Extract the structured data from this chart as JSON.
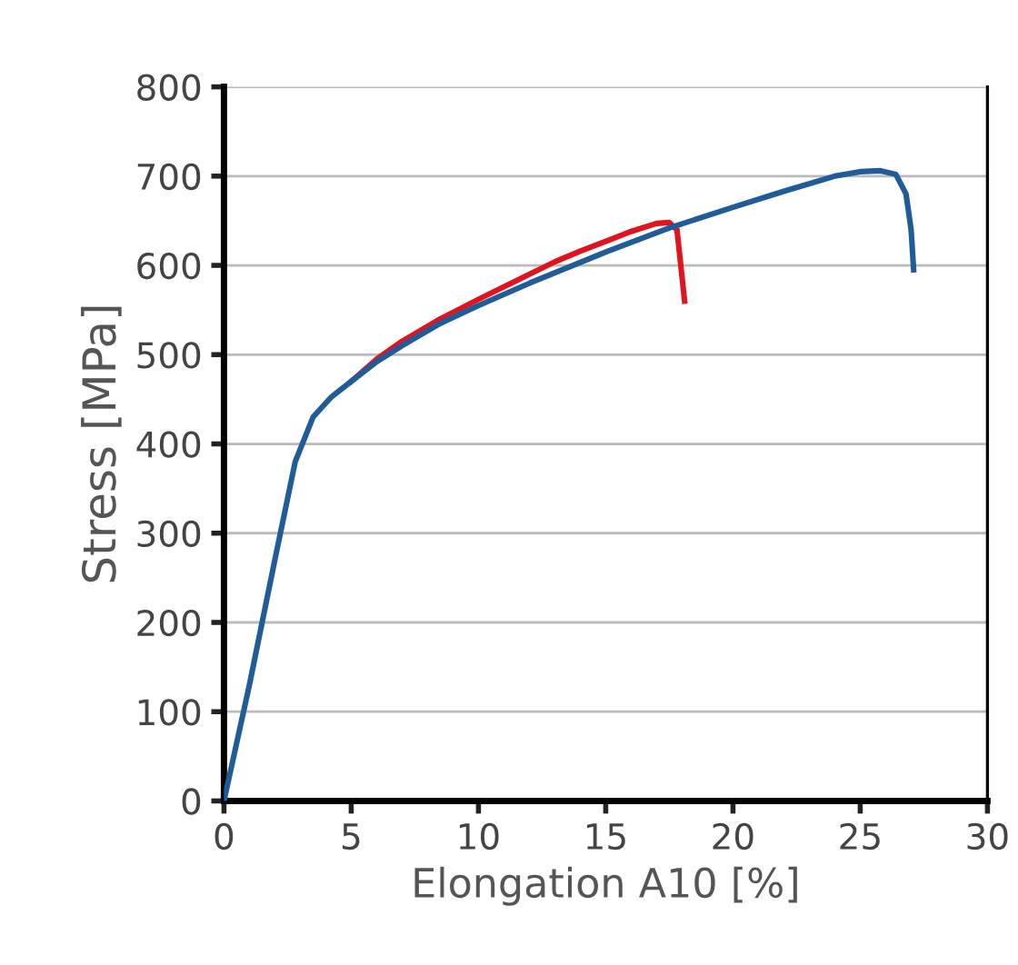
{
  "chart_data": {
    "type": "line",
    "xlabel": "Elongation A10 [%]",
    "ylabel": "Stress [MPa]",
    "xlim": [
      0,
      30
    ],
    "ylim": [
      0,
      800
    ],
    "xticks": [
      0,
      5,
      10,
      15,
      20,
      25,
      30
    ],
    "yticks": [
      0,
      100,
      200,
      300,
      400,
      500,
      600,
      700,
      800
    ],
    "grid": "y",
    "marker": "none",
    "line_style": "solid",
    "series": [
      {
        "color": "#e0141e",
        "x": [
          5,
          6,
          7,
          8.5,
          10,
          11.5,
          13,
          14,
          15,
          16,
          17,
          17.5,
          17.8,
          17.95,
          18.1
        ],
        "values": [
          470,
          495,
          515,
          540,
          562,
          583,
          604,
          616,
          627,
          638,
          647,
          648,
          640,
          600,
          560
        ]
      },
      {
        "color": "#1f5c99",
        "x": [
          0,
          1,
          2,
          2.8,
          3.5,
          4.2,
          5,
          6,
          7,
          8.5,
          10,
          12,
          15,
          17.5,
          20,
          22,
          24,
          25,
          25.8,
          26.4,
          26.8,
          27,
          27.1
        ],
        "values": [
          0,
          130,
          270,
          380,
          430,
          452,
          470,
          492,
          510,
          535,
          555,
          580,
          615,
          642,
          665,
          683,
          700,
          705,
          706,
          702,
          680,
          640,
          595
        ]
      }
    ]
  }
}
